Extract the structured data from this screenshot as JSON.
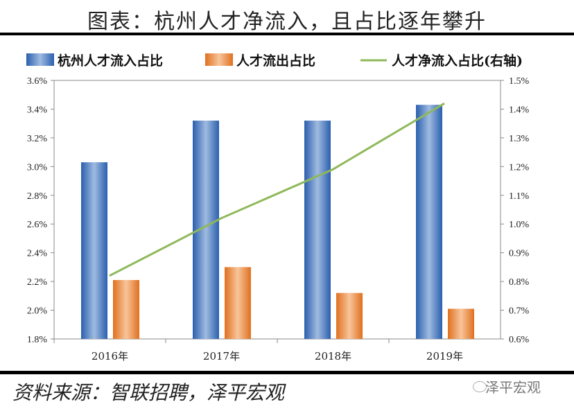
{
  "title": "图表：杭州人才净流入，且占比逐年攀升",
  "source": "资料来源：智联招聘，泽平宏观",
  "watermark": "泽平宏观",
  "chart_data": {
    "type": "bar",
    "categories": [
      "2016年",
      "2017年",
      "2018年",
      "2019年"
    ],
    "series": [
      {
        "name": "杭州人才流入占比",
        "type": "bar",
        "axis": "left",
        "color": "#3a72c0",
        "values": [
          3.03,
          3.32,
          3.32,
          3.43
        ]
      },
      {
        "name": "人才流出占比",
        "type": "bar",
        "axis": "left",
        "color": "#ef8a3a",
        "values": [
          2.21,
          2.3,
          2.12,
          2.01
        ]
      },
      {
        "name": "人才净流入占比(右轴)",
        "type": "line",
        "axis": "right",
        "color": "#8fb85a",
        "values": [
          0.82,
          1.02,
          1.19,
          1.42
        ]
      }
    ],
    "ylim": [
      1.8,
      3.6
    ],
    "yticks": [
      "1.8%",
      "2.0%",
      "2.2%",
      "2.4%",
      "2.6%",
      "2.8%",
      "3.0%",
      "3.2%",
      "3.4%",
      "3.6%"
    ],
    "y2lim": [
      0.6,
      1.5
    ],
    "y2ticks": [
      "0.6%",
      "0.7%",
      "0.8%",
      "0.9%",
      "1.0%",
      "1.1%",
      "1.2%",
      "1.3%",
      "1.4%",
      "1.5%"
    ],
    "legend": "top"
  }
}
